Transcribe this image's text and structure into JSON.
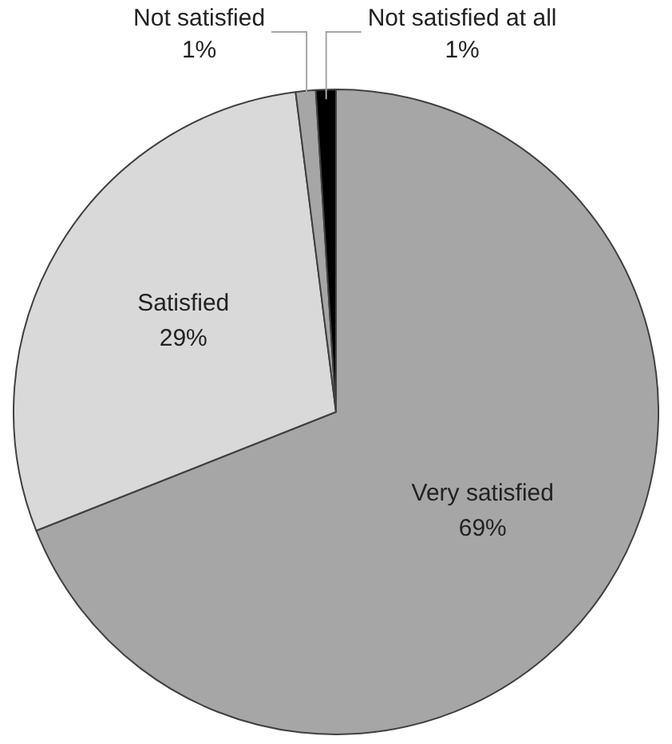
{
  "chart_data": {
    "type": "pie",
    "categories": [
      "Very satisfied",
      "Satisfied",
      "Not satisfied",
      "Not satisfied at all"
    ],
    "values": [
      69,
      29,
      1,
      1
    ],
    "colors": [
      "#a6a6a6",
      "#d9d9d9",
      "#a6a6a6",
      "#000000"
    ],
    "value_labels": [
      "69%",
      "29%",
      "1%",
      "1%"
    ],
    "legend": false
  }
}
